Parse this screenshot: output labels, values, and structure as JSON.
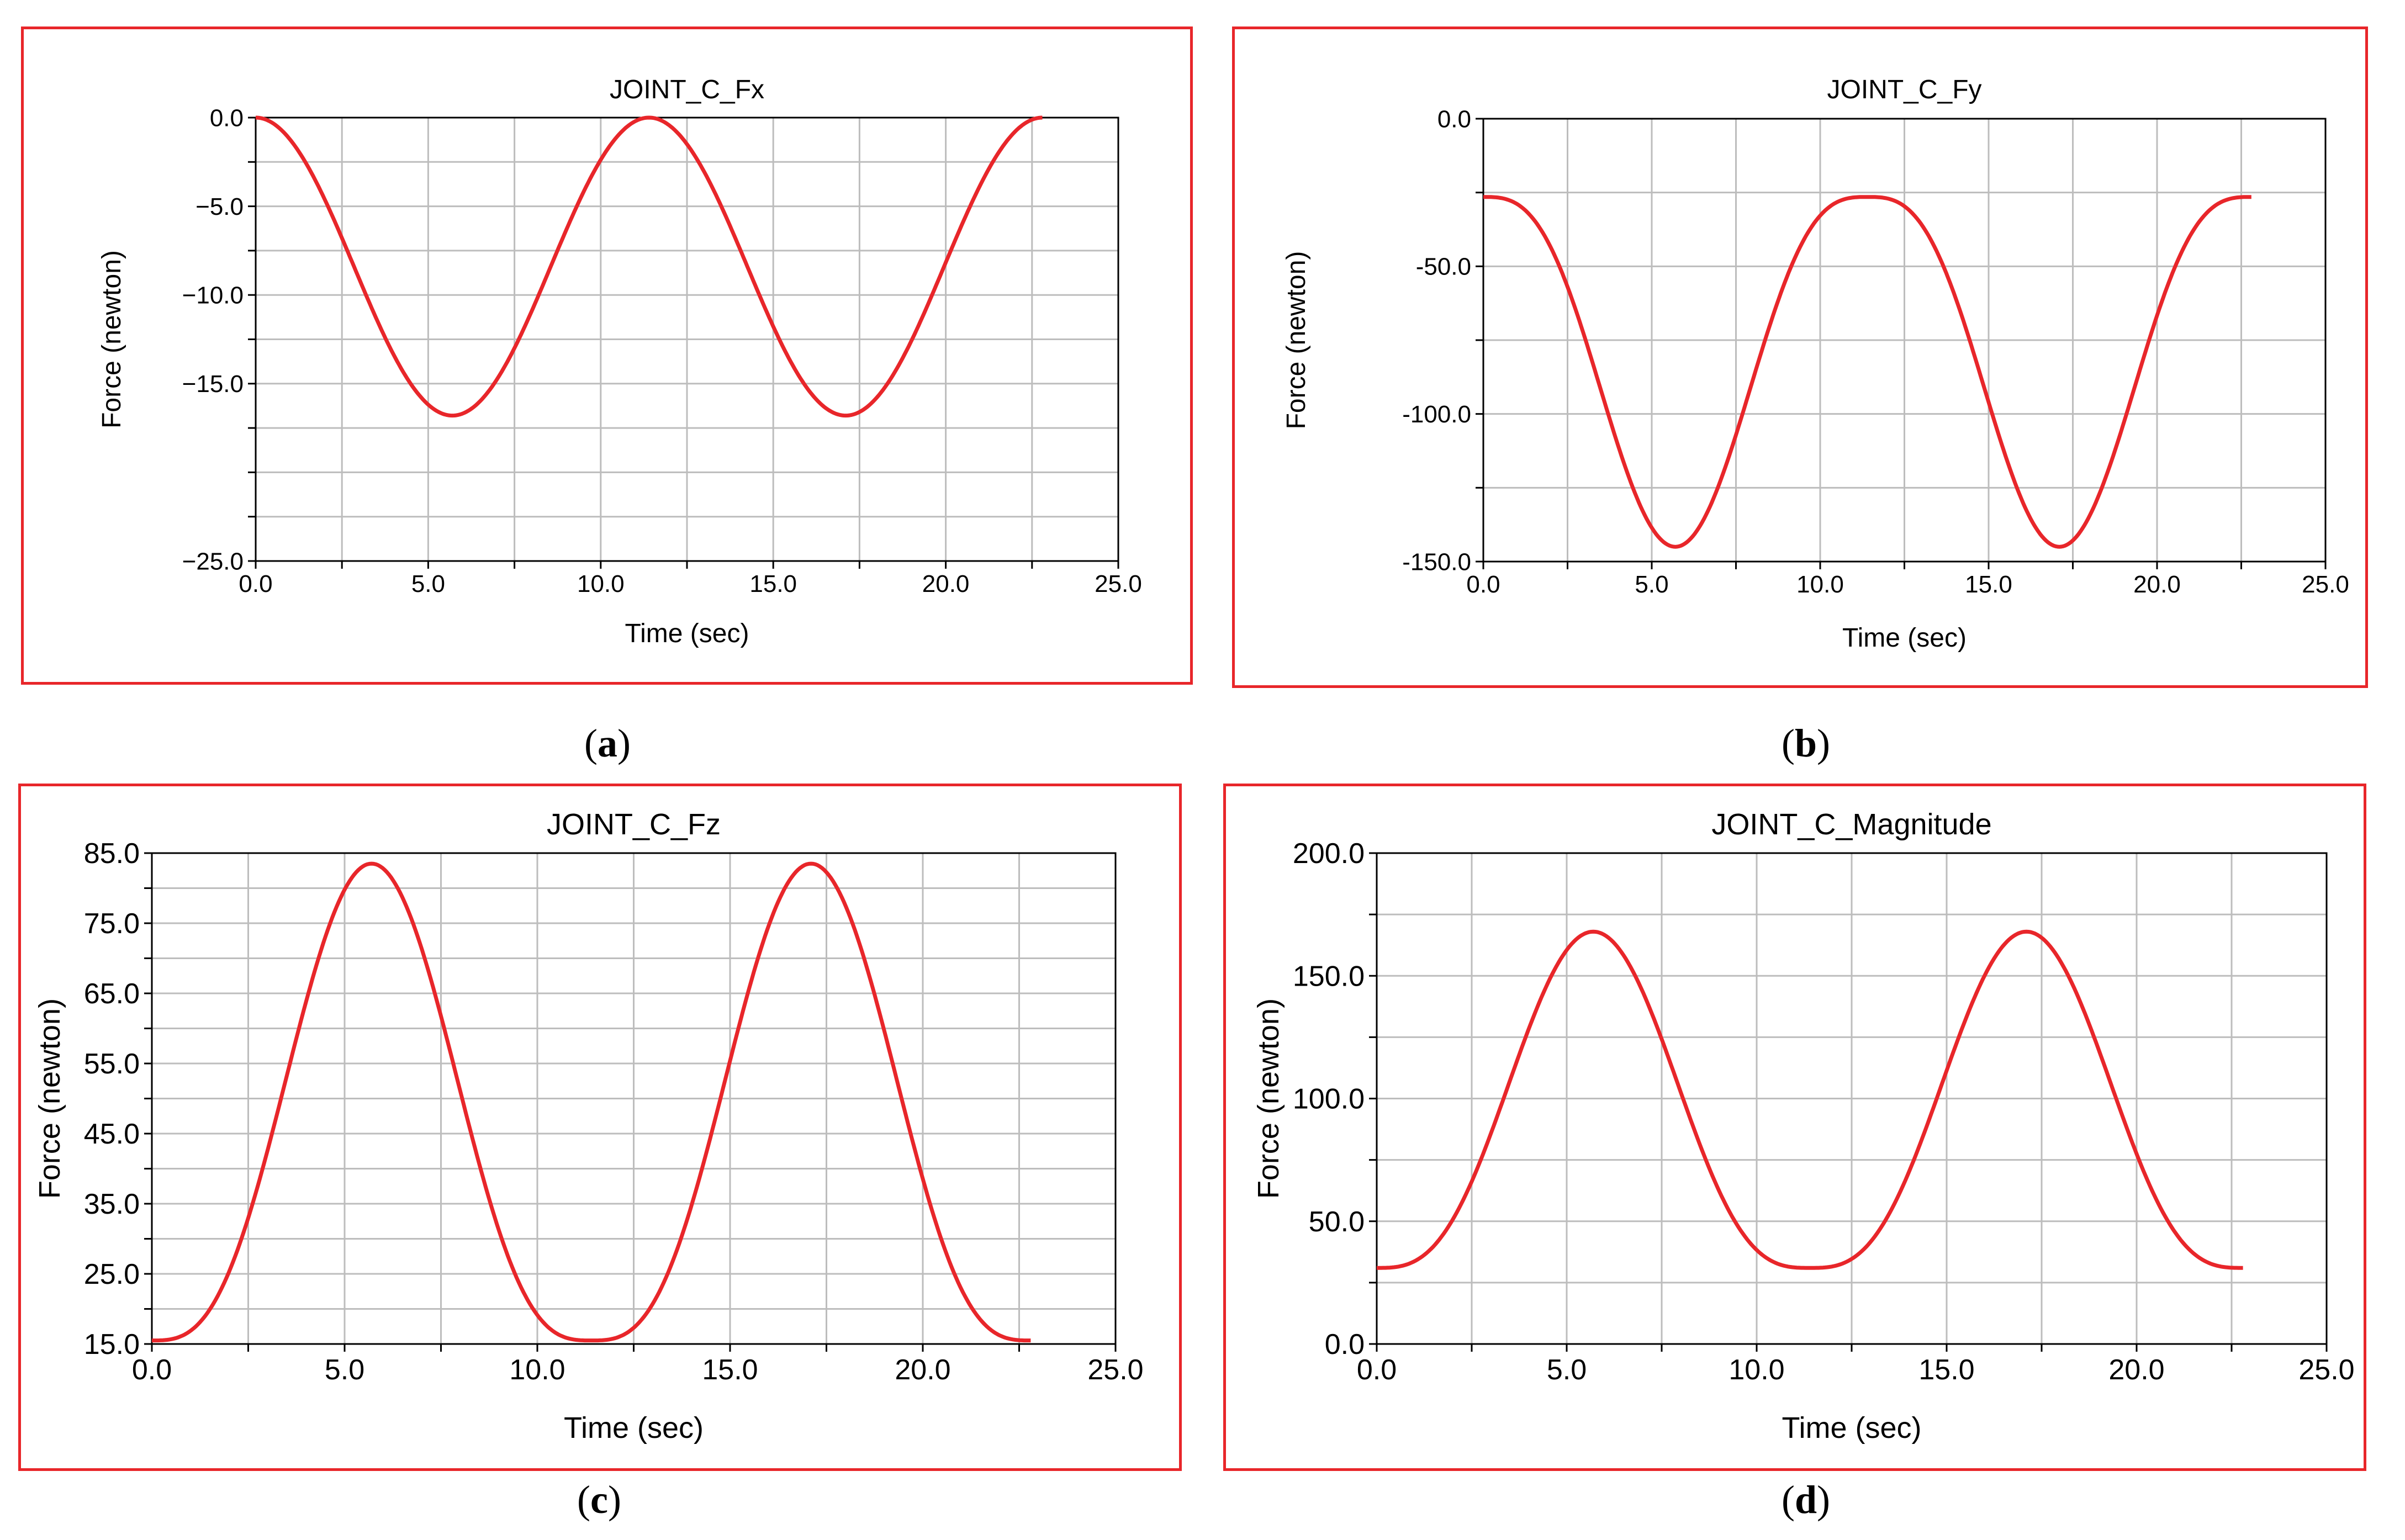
{
  "figure": {
    "captions": [
      "a",
      "b",
      "c",
      "d"
    ]
  },
  "chart_data": [
    {
      "type": "line",
      "panel": "a",
      "title": "JOINT_C_Fx",
      "xlabel": "Time (sec)",
      "ylabel": "Force (newton)",
      "xlim": [
        0,
        25
      ],
      "ylim": [
        -25,
        0
      ],
      "x_ticks": [
        "0.0",
        "5.0",
        "10.0",
        "15.0",
        "20.0",
        "25.0"
      ],
      "y_ticks": [
        "0.0",
        "−5.0",
        "−10.0",
        "−15.0",
        "−25.0"
      ],
      "y_tick_values": [
        0,
        -5,
        -10,
        -15,
        -25
      ],
      "minor_x_divisions": 2,
      "minor_y_divisions": 2,
      "grid": true,
      "line_color": "#e8262a",
      "series": [
        {
          "name": "JOINT_C_Fx",
          "x_end": 22.8,
          "period": 11.4,
          "min": -16.8,
          "max": 0,
          "shape": "cosine",
          "phase": "max_at_start"
        }
      ]
    },
    {
      "type": "line",
      "panel": "b",
      "title": "JOINT_C_Fy",
      "xlabel": "Time (sec)",
      "ylabel": "Force (newton)",
      "xlim": [
        0,
        25
      ],
      "ylim": [
        -150,
        0
      ],
      "x_ticks": [
        "0.0",
        "5.0",
        "10.0",
        "15.0",
        "20.0",
        "25.0"
      ],
      "y_ticks": [
        "0.0",
        "-50.0",
        "-100.0",
        "-150.0"
      ],
      "y_tick_values": [
        0,
        -50,
        -100,
        -150
      ],
      "minor_x_divisions": 2,
      "minor_y_divisions": 2,
      "grid": true,
      "line_color": "#e8262a",
      "series": [
        {
          "name": "JOINT_C_Fy",
          "x_end": 22.8,
          "period": 11.4,
          "min": -145,
          "max": -26.5,
          "shape": "peaked",
          "phase": "max_at_start"
        }
      ]
    },
    {
      "type": "line",
      "panel": "c",
      "title": "JOINT_C_Fz",
      "xlabel": "Time (sec)",
      "ylabel": "Force (newton)",
      "xlim": [
        0,
        25
      ],
      "ylim": [
        15,
        85
      ],
      "x_ticks": [
        "0.0",
        "5.0",
        "10.0",
        "15.0",
        "20.0",
        "25.0"
      ],
      "y_ticks": [
        "85.0",
        "75.0",
        "65.0",
        "55.0",
        "45.0",
        "35.0",
        "25.0",
        "15.0"
      ],
      "y_tick_values": [
        85,
        75,
        65,
        55,
        45,
        35,
        25,
        15
      ],
      "minor_x_divisions": 2,
      "minor_y_divisions": 2,
      "grid": true,
      "line_color": "#e8262a",
      "series": [
        {
          "name": "JOINT_C_Fz",
          "x_end": 22.8,
          "period": 11.4,
          "min": 15.5,
          "max": 83.5,
          "shape": "peaked",
          "phase": "min_at_start"
        }
      ]
    },
    {
      "type": "line",
      "panel": "d",
      "title": "JOINT_C_Magnitude",
      "xlabel": "Time (sec)",
      "ylabel": "Force (newton)",
      "xlim": [
        0,
        25
      ],
      "ylim": [
        0,
        200
      ],
      "x_ticks": [
        "0.0",
        "5.0",
        "10.0",
        "15.0",
        "20.0",
        "25.0"
      ],
      "y_ticks": [
        "200.0",
        "150.0",
        "100.0",
        "50.0",
        "0.0"
      ],
      "y_tick_values": [
        200,
        150,
        100,
        50,
        0
      ],
      "minor_x_divisions": 2,
      "minor_y_divisions": 2,
      "grid": true,
      "line_color": "#e8262a",
      "series": [
        {
          "name": "JOINT_C_Magnitude",
          "x_end": 22.8,
          "period": 11.4,
          "min": 31,
          "max": 168,
          "shape": "peaked",
          "phase": "min_at_start"
        }
      ]
    }
  ]
}
